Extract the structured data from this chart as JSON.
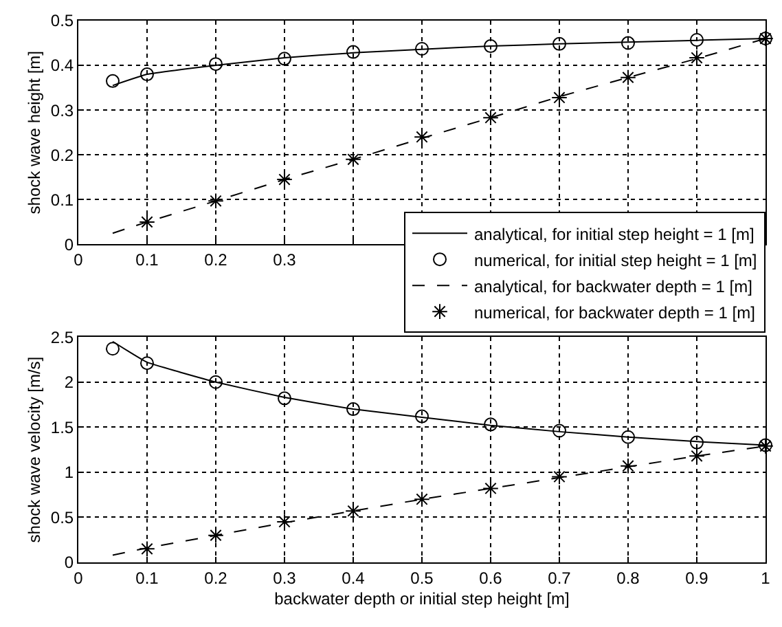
{
  "chart_data": [
    {
      "type": "line",
      "ylabel": "shock wave height [m]",
      "xlim": [
        0,
        1
      ],
      "ylim": [
        0,
        0.5
      ],
      "xticks": [
        0,
        0.1,
        0.2,
        0.3,
        {
          "value": 0.4,
          "label": null
        },
        {
          "value": 0.5,
          "label": null
        },
        {
          "value": 0.6,
          "label": null
        },
        {
          "value": 0.7,
          "label": null
        },
        {
          "value": 0.8,
          "label": null
        },
        {
          "value": 0.9,
          "label": null
        },
        {
          "value": 1,
          "label": null
        }
      ],
      "yticks": [
        0,
        0.1,
        0.2,
        0.3,
        0.4,
        0.5
      ],
      "grid": true,
      "legend": "bottom right",
      "series": [
        {
          "name": "analytical, for initial step height = 1 [m]",
          "line_style": "solid",
          "marker": "none",
          "color": "#000000",
          "x": [
            0.05,
            0.1,
            0.2,
            0.3,
            0.4,
            0.5,
            0.6,
            0.7,
            0.8,
            0.9,
            1
          ],
          "values": [
            0.355,
            0.38,
            0.4,
            0.417,
            0.428,
            0.436,
            0.443,
            0.448,
            0.452,
            0.456,
            0.46
          ]
        },
        {
          "name": "numerical, for initial step height = 1 [m]",
          "type": "scatter",
          "marker": "circle",
          "color": "#000000",
          "x": [
            0.05,
            0.1,
            0.2,
            0.3,
            0.4,
            0.5,
            0.6,
            0.7,
            0.8,
            0.9,
            1
          ],
          "values": [
            0.365,
            0.38,
            0.403,
            0.415,
            0.43,
            0.437,
            0.443,
            0.448,
            0.45,
            0.457,
            0.46
          ]
        },
        {
          "name": "analytical, for backwater depth = 1 [m]",
          "line_style": "dashed",
          "marker": "none",
          "color": "#000000",
          "x": [
            0.05,
            0.1,
            0.2,
            0.3,
            0.4,
            0.5,
            0.6,
            0.7,
            0.8,
            0.9,
            1
          ],
          "values": [
            0.025,
            0.05,
            0.097,
            0.145,
            0.19,
            0.237,
            0.283,
            0.33,
            0.373,
            0.415,
            0.46
          ]
        },
        {
          "name": "numerical, for backwater depth = 1 [m]",
          "type": "scatter",
          "marker": "cross",
          "color": "#000000",
          "x": [
            0.1,
            0.2,
            0.3,
            0.4,
            0.5,
            0.6,
            0.7,
            0.8,
            0.9,
            1
          ],
          "values": [
            0.05,
            0.097,
            0.145,
            0.19,
            0.24,
            0.283,
            0.328,
            0.373,
            0.417,
            0.46
          ]
        }
      ]
    },
    {
      "type": "line",
      "xlabel": "backwater depth or initial step height [m]",
      "ylabel": "shock wave velocity [m/s]",
      "xlim": [
        0,
        1
      ],
      "ylim": [
        0,
        2.5
      ],
      "xticks": [
        0,
        0.1,
        0.2,
        0.3,
        0.4,
        0.5,
        0.6,
        0.7,
        0.8,
        0.9,
        1
      ],
      "yticks": [
        0,
        0.5,
        1,
        1.5,
        2,
        2.5
      ],
      "grid": true,
      "series": [
        {
          "line_style": "solid",
          "marker": "none",
          "color": "#000000",
          "x": [
            0.05,
            0.1,
            0.2,
            0.3,
            0.4,
            0.5,
            0.6,
            0.7,
            0.8,
            0.9,
            1
          ],
          "values": [
            2.45,
            2.22,
            2.0,
            1.83,
            1.7,
            1.61,
            1.52,
            1.45,
            1.39,
            1.34,
            1.3
          ]
        },
        {
          "type": "scatter",
          "marker": "circle",
          "color": "#000000",
          "x": [
            0.05,
            0.1,
            0.2,
            0.3,
            0.4,
            0.5,
            0.6,
            0.7,
            0.8,
            0.9,
            1
          ],
          "values": [
            2.37,
            2.21,
            2.0,
            1.82,
            1.7,
            1.62,
            1.53,
            1.46,
            1.39,
            1.33,
            1.3
          ]
        },
        {
          "line_style": "dashed",
          "marker": "none",
          "color": "#000000",
          "x": [
            0.05,
            0.1,
            0.2,
            0.3,
            0.4,
            0.5,
            0.6,
            0.7,
            0.8,
            0.9,
            1
          ],
          "values": [
            0.08,
            0.16,
            0.3,
            0.44,
            0.57,
            0.7,
            0.82,
            0.94,
            1.06,
            1.18,
            1.29
          ]
        },
        {
          "type": "scatter",
          "marker": "cross",
          "color": "#000000",
          "x": [
            0.1,
            0.2,
            0.3,
            0.4,
            0.5,
            0.6,
            0.7,
            0.8,
            0.9,
            1
          ],
          "values": [
            0.15,
            0.3,
            0.45,
            0.57,
            0.7,
            0.82,
            0.95,
            1.07,
            1.18,
            1.29
          ]
        }
      ]
    }
  ]
}
